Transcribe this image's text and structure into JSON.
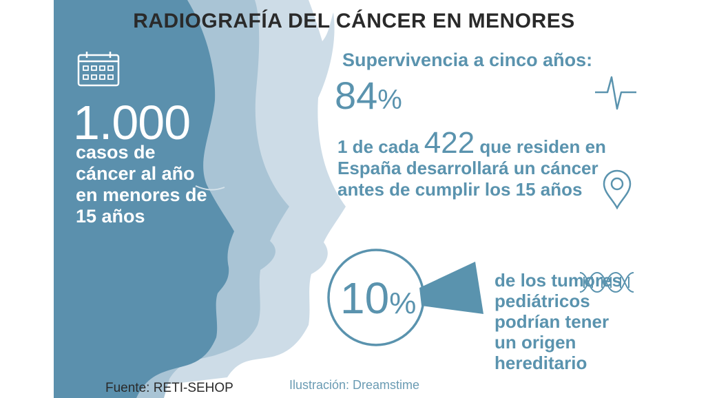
{
  "title": "RADIOGRAFÍA DEL CÁNCER EN MENORES",
  "cases": {
    "number": "1.000",
    "description": "casos de cáncer al año en menores de 15 años",
    "icon": "calendar-icon"
  },
  "survival": {
    "label": "Supervivencia a cinco años:",
    "value": "84",
    "unit": "%",
    "icon": "heartbeat-icon"
  },
  "ratio": {
    "prefix": "1 de cada",
    "number": "422",
    "text": "que residen en España desarrollará un cáncer antes de cumplir los 15 años",
    "icon": "location-pin-icon"
  },
  "hereditary": {
    "value": "10",
    "unit": "%",
    "share": 0.1,
    "text": "de los tumores pediátricos podrían tener un origen hereditario",
    "icon": "dna-icon"
  },
  "footer": {
    "source": "Fuente: RETI-SEHOP",
    "credit": "Ilustración: Dreamstime"
  },
  "colors": {
    "accent": "#5a93ae",
    "face_dark": "#5b90ad",
    "face_mid": "#a9c4d5",
    "face_light": "#cddce7"
  }
}
